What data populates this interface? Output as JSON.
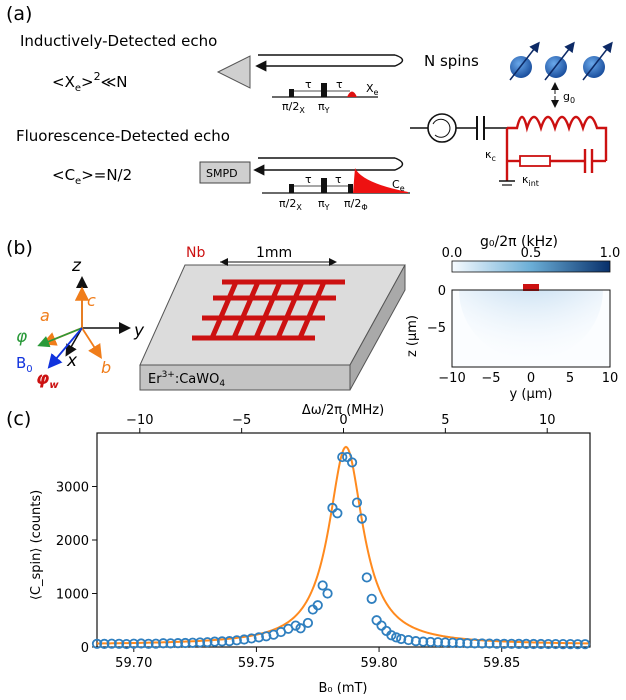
{
  "panels": {
    "a": "(a)",
    "b": "(b)",
    "c": "(c)"
  },
  "panel_a": {
    "inductive_title": "Inductively-Detected echo",
    "inductive_formula_base": "<X",
    "inductive_formula_sub": "e",
    "inductive_formula_rest": ">",
    "inductive_formula_exp": "2",
    "inductive_formula_tail": "≪N",
    "fluor_title": "Fluorescence-Detected echo",
    "fluor_formula_base": "<C",
    "fluor_formula_sub": "e",
    "fluor_formula_tail": ">=N/2",
    "smpd": "SMPD",
    "n_spins": "N spins",
    "tau": "τ",
    "pulse_pi2x": "π/2",
    "pulse_x_sub": "X",
    "pulse_piy": "π",
    "pulse_y_sub": "Y",
    "pulse_pi2phi": "π/2",
    "pulse_phi_sub": "Φ",
    "echo_xe": "X",
    "echo_xe_sub": "e",
    "echo_ce": "C",
    "echo_ce_sub": "e",
    "g0": "g",
    "g0_sub": "0",
    "kappa_c": "κ",
    "kappa_c_sub": "c",
    "kappa_int": "κ",
    "kappa_int_sub": "int"
  },
  "panel_b": {
    "axis_z": "z",
    "axis_y": "y",
    "axis_x": "x",
    "axis_a": "a",
    "axis_b": "b",
    "axis_c": "c",
    "phi": "φ",
    "phi_w": "φ",
    "phi_w_sub": "w",
    "b0": "B",
    "b0_sub": "0",
    "nb_label": "Nb",
    "scale": "1mm",
    "substrate_pre": "Er",
    "substrate_sup": "3+",
    "substrate_post": ":CaWO",
    "substrate_sub": "4",
    "colorbar_title": "g₀/2π (kHz)",
    "colorbar_ticks": [
      "0.0",
      "0.5",
      "1.0"
    ],
    "map_ylabel": "z (μm)",
    "map_xlabel": "y (μm)",
    "map_xticks": [
      "−10",
      "−5",
      "0",
      "5",
      "10"
    ],
    "map_yticks": [
      "0",
      "−5"
    ]
  },
  "colors": {
    "resonator_red": "#cc1111",
    "data_blue": "#2f7fbf",
    "fit_orange": "#ff8a1e",
    "spin_blue": "#1f5fb0",
    "axis_orange": "#f07d1a",
    "phi_green": "#2a9a3a",
    "b0_blue": "#1133dd"
  },
  "chart_data": {
    "type": "scatter",
    "xlabel": "B₀ (mT)",
    "ylabel": "⟨C_spin⟩ (counts)",
    "top_xlabel": "Δω/2π (MHz)",
    "xlim": [
      59.685,
      59.886
    ],
    "ylim": [
      0,
      4000
    ],
    "top_xlim": [
      -12.1,
      12.1
    ],
    "xticks": [
      59.7,
      59.75,
      59.8,
      59.85
    ],
    "xtick_labels": [
      "59.70",
      "59.75",
      "59.80",
      "59.85"
    ],
    "yticks": [
      0,
      1000,
      2000,
      3000
    ],
    "ytick_labels": [
      "0",
      "1000",
      "2000",
      "3000"
    ],
    "top_xticks": [
      -10,
      -5,
      0,
      5,
      10
    ],
    "top_xtick_labels": [
      "−10",
      "−5",
      "0",
      "5",
      "10"
    ],
    "grid": false,
    "series": [
      {
        "kind": "markers",
        "x": [
          59.685,
          59.688,
          59.691,
          59.694,
          59.697,
          59.7,
          59.703,
          59.706,
          59.709,
          59.712,
          59.715,
          59.718,
          59.721,
          59.724,
          59.727,
          59.73,
          59.733,
          59.736,
          59.739,
          59.742,
          59.745,
          59.748,
          59.751,
          59.754,
          59.757,
          59.76,
          59.763,
          59.766,
          59.768,
          59.771,
          59.773,
          59.775,
          59.777,
          59.779,
          59.781,
          59.783,
          59.785,
          59.787,
          59.789,
          59.791,
          59.793,
          59.795,
          59.797,
          59.799,
          59.801,
          59.803,
          59.805,
          59.807,
          59.809,
          59.812,
          59.815,
          59.818,
          59.821,
          59.824,
          59.827,
          59.83,
          59.833,
          59.836,
          59.839,
          59.842,
          59.845,
          59.848,
          59.851,
          59.854,
          59.857,
          59.86,
          59.863,
          59.866,
          59.869,
          59.872,
          59.875,
          59.878,
          59.881,
          59.884
        ],
        "y": [
          60,
          58,
          62,
          60,
          55,
          62,
          65,
          60,
          62,
          70,
          68,
          72,
          75,
          80,
          85,
          90,
          100,
          105,
          110,
          125,
          140,
          160,
          180,
          200,
          230,
          280,
          340,
          400,
          350,
          450,
          700,
          780,
          1150,
          1000,
          2600,
          2500,
          3550,
          3550,
          3450,
          2700,
          2400,
          1300,
          900,
          500,
          400,
          300,
          220,
          180,
          150,
          130,
          110,
          100,
          95,
          90,
          85,
          80,
          75,
          70,
          68,
          66,
          64,
          62,
          60,
          60,
          58,
          58,
          56,
          56,
          55,
          55,
          54,
          54,
          53,
          53
        ]
      },
      {
        "kind": "fit",
        "model": "lorentzian",
        "center": 59.7865,
        "hwhm": 0.0085,
        "amplitude": 3700,
        "baseline": 40
      }
    ]
  }
}
